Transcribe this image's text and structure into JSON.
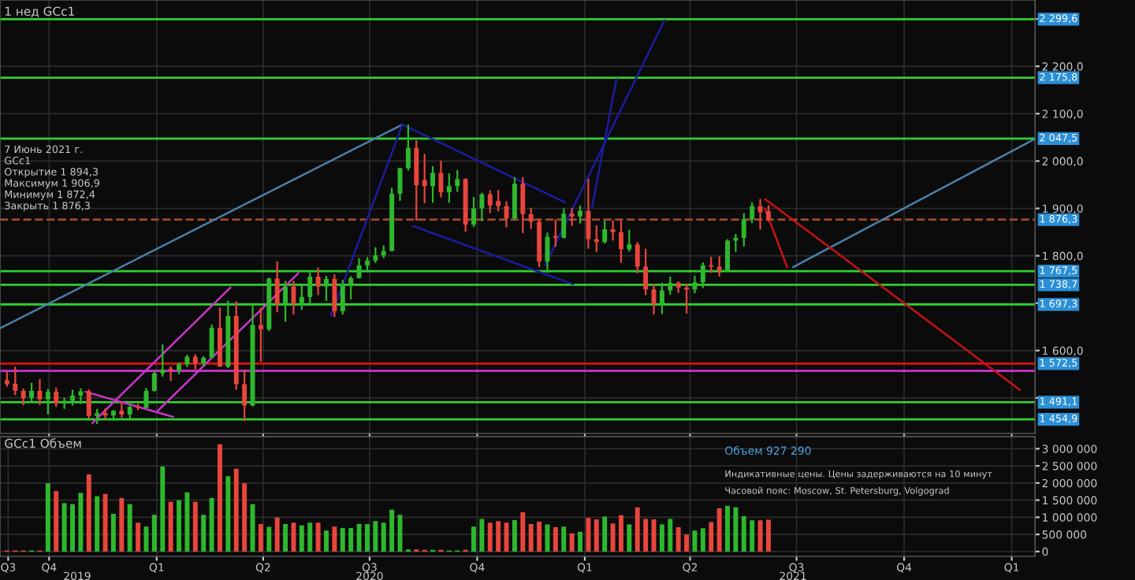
{
  "chart_data": [
    {
      "type": "candlestick",
      "title": "1 нед GCc1",
      "x": [
        "2019-08-26",
        "2019-09-02",
        "2019-09-09",
        "2019-09-16",
        "2019-09-23",
        "2019-09-30",
        "2019-10-07",
        "2019-10-14",
        "2019-10-21",
        "2019-10-28",
        "2019-11-04",
        "2019-11-11",
        "2019-11-18",
        "2019-11-25",
        "2019-12-02",
        "2019-12-09",
        "2019-12-16",
        "2019-12-23",
        "2019-12-30",
        "2020-01-06",
        "2020-01-13",
        "2020-01-20",
        "2020-01-27",
        "2020-02-03",
        "2020-02-10",
        "2020-02-17",
        "2020-02-24",
        "2020-03-02",
        "2020-03-09",
        "2020-03-16",
        "2020-03-23",
        "2020-03-30",
        "2020-04-06",
        "2020-04-13",
        "2020-04-20",
        "2020-04-27",
        "2020-05-04",
        "2020-05-11",
        "2020-05-18",
        "2020-05-25",
        "2020-06-01",
        "2020-06-08",
        "2020-06-15",
        "2020-06-22",
        "2020-06-29",
        "2020-07-06",
        "2020-07-13",
        "2020-07-20",
        "2020-07-27",
        "2020-08-03",
        "2020-08-10",
        "2020-08-17",
        "2020-08-24",
        "2020-08-31",
        "2020-09-07",
        "2020-09-14",
        "2020-09-21",
        "2020-09-28",
        "2020-10-05",
        "2020-10-12",
        "2020-10-19",
        "2020-10-26",
        "2020-11-02",
        "2020-11-09",
        "2020-11-16",
        "2020-11-23",
        "2020-11-30",
        "2020-12-07",
        "2020-12-14",
        "2020-12-21",
        "2020-12-28",
        "2021-01-04",
        "2021-01-11",
        "2021-01-18",
        "2021-01-25",
        "2021-02-01",
        "2021-02-08",
        "2021-02-15",
        "2021-02-22",
        "2021-03-01",
        "2021-03-08",
        "2021-03-15",
        "2021-03-22",
        "2021-03-29",
        "2021-04-05",
        "2021-04-12",
        "2021-04-19",
        "2021-04-26",
        "2021-05-03",
        "2021-05-10",
        "2021-05-17",
        "2021-05-24",
        "2021-05-31",
        "2021-06-07"
      ],
      "ohlc": [
        [
          1537,
          1556,
          1524,
          1529
        ],
        [
          1530,
          1566,
          1506,
          1515
        ],
        [
          1515,
          1520,
          1485,
          1499
        ],
        [
          1500,
          1532,
          1490,
          1515
        ],
        [
          1515,
          1540,
          1485,
          1497
        ],
        [
          1497,
          1519,
          1465,
          1513
        ],
        [
          1513,
          1522,
          1481,
          1488
        ],
        [
          1488,
          1500,
          1477,
          1494
        ],
        [
          1494,
          1517,
          1484,
          1505
        ],
        [
          1505,
          1520,
          1487,
          1514
        ],
        [
          1514,
          1518,
          1456,
          1462
        ],
        [
          1462,
          1477,
          1445,
          1468
        ],
        [
          1468,
          1478,
          1456,
          1463
        ],
        [
          1463,
          1474,
          1452,
          1473
        ],
        [
          1473,
          1490,
          1458,
          1465
        ],
        [
          1465,
          1486,
          1456,
          1481
        ],
        [
          1482,
          1487,
          1474,
          1479
        ],
        [
          1479,
          1521,
          1478,
          1515
        ],
        [
          1515,
          1555,
          1513,
          1552
        ],
        [
          1552,
          1613,
          1545,
          1560
        ],
        [
          1562,
          1567,
          1536,
          1558
        ],
        [
          1558,
          1575,
          1550,
          1571
        ],
        [
          1571,
          1591,
          1565,
          1587
        ],
        [
          1587,
          1592,
          1560,
          1573
        ],
        [
          1573,
          1588,
          1566,
          1585
        ],
        [
          1585,
          1655,
          1583,
          1648
        ],
        [
          1648,
          1691,
          1566,
          1566
        ],
        [
          1566,
          1705,
          1563,
          1673
        ],
        [
          1673,
          1704,
          1517,
          1529
        ],
        [
          1529,
          1560,
          1451,
          1484
        ],
        [
          1484,
          1695,
          1482,
          1654
        ],
        [
          1654,
          1690,
          1576,
          1645
        ],
        [
          1645,
          1754,
          1641,
          1752
        ],
        [
          1752,
          1788,
          1681,
          1698
        ],
        [
          1698,
          1747,
          1661,
          1735
        ],
        [
          1735,
          1747,
          1676,
          1700
        ],
        [
          1700,
          1738,
          1686,
          1713
        ],
        [
          1713,
          1765,
          1694,
          1756
        ],
        [
          1756,
          1775,
          1717,
          1735
        ],
        [
          1735,
          1758,
          1705,
          1751
        ],
        [
          1751,
          1761,
          1671,
          1683
        ],
        [
          1683,
          1749,
          1676,
          1737
        ],
        [
          1737,
          1757,
          1708,
          1753
        ],
        [
          1753,
          1795,
          1752,
          1780
        ],
        [
          1780,
          1797,
          1765,
          1790
        ],
        [
          1790,
          1818,
          1785,
          1801
        ],
        [
          1801,
          1822,
          1795,
          1810
        ],
        [
          1810,
          1944,
          1810,
          1931
        ],
        [
          1931,
          1985,
          1916,
          1985
        ],
        [
          1985,
          2077,
          1980,
          2028
        ],
        [
          2028,
          2044,
          1874,
          1949
        ],
        [
          1960,
          2015,
          1911,
          1947
        ],
        [
          1947,
          1989,
          1912,
          1975
        ],
        [
          1975,
          2001,
          1923,
          1934
        ],
        [
          1934,
          1974,
          1912,
          1947
        ],
        [
          1947,
          1981,
          1935,
          1962
        ],
        [
          1962,
          1964,
          1851,
          1866
        ],
        [
          1866,
          1924,
          1861,
          1900
        ],
        [
          1900,
          1933,
          1873,
          1930
        ],
        [
          1930,
          1938,
          1890,
          1906
        ],
        [
          1916,
          1939,
          1894,
          1905
        ],
        [
          1905,
          1915,
          1860,
          1879
        ],
        [
          1879,
          1966,
          1876,
          1952
        ],
        [
          1952,
          1966,
          1848,
          1888
        ],
        [
          1888,
          1901,
          1857,
          1872
        ],
        [
          1872,
          1878,
          1776,
          1788
        ],
        [
          1788,
          1849,
          1764,
          1840
        ],
        [
          1842,
          1877,
          1819,
          1838
        ],
        [
          1838,
          1900,
          1837,
          1889
        ],
        [
          1889,
          1901,
          1863,
          1883
        ],
        [
          1883,
          1906,
          1868,
          1895
        ],
        [
          1895,
          1962,
          1815,
          1835
        ],
        [
          1835,
          1864,
          1808,
          1829
        ],
        [
          1829,
          1874,
          1826,
          1856
        ],
        [
          1856,
          1875,
          1832,
          1850
        ],
        [
          1850,
          1875,
          1785,
          1814
        ],
        [
          1814,
          1855,
          1809,
          1824
        ],
        [
          1824,
          1829,
          1763,
          1777
        ],
        [
          1777,
          1815,
          1717,
          1729
        ],
        [
          1729,
          1740,
          1676,
          1698
        ],
        [
          1698,
          1743,
          1677,
          1727
        ],
        [
          1727,
          1756,
          1718,
          1743
        ],
        [
          1743,
          1746,
          1722,
          1733
        ],
        [
          1733,
          1741,
          1678,
          1729
        ],
        [
          1729,
          1758,
          1721,
          1744
        ],
        [
          1744,
          1786,
          1732,
          1780
        ],
        [
          1780,
          1798,
          1764,
          1777
        ],
        [
          1777,
          1799,
          1756,
          1768
        ],
        [
          1768,
          1835,
          1768,
          1832
        ],
        [
          1832,
          1846,
          1808,
          1838
        ],
        [
          1838,
          1890,
          1820,
          1877
        ],
        [
          1877,
          1913,
          1869,
          1905
        ],
        [
          1905,
          1920,
          1855,
          1892
        ],
        [
          1894.3,
          1906.9,
          1872.4,
          1876.3
        ]
      ],
      "colors": [
        "#e8453c",
        "#e8453c",
        "#e8453c",
        "#2db82d",
        "#e8453c",
        "#2db82d",
        "#e8453c",
        "#2db82d",
        "#2db82d",
        "#2db82d",
        "#e8453c",
        "#2db82d",
        "#e8453c",
        "#2db82d",
        "#e8453c",
        "#2db82d",
        "#e8453c",
        "#2db82d",
        "#2db82d",
        "#2db82d",
        "#e8453c",
        "#2db82d",
        "#2db82d",
        "#e8453c",
        "#2db82d",
        "#2db82d",
        "#e8453c",
        "#2db82d",
        "#e8453c",
        "#e8453c",
        "#2db82d",
        "#e8453c",
        "#2db82d",
        "#e8453c",
        "#2db82d",
        "#e8453c",
        "#2db82d",
        "#2db82d",
        "#e8453c",
        "#2db82d",
        "#e8453c",
        "#2db82d",
        "#2db82d",
        "#2db82d",
        "#2db82d",
        "#2db82d",
        "#2db82d",
        "#2db82d",
        "#2db82d",
        "#2db82d",
        "#e8453c",
        "#e8453c",
        "#2db82d",
        "#e8453c",
        "#2db82d",
        "#2db82d",
        "#e8453c",
        "#2db82d",
        "#2db82d",
        "#e8453c",
        "#e8453c",
        "#e8453c",
        "#2db82d",
        "#e8453c",
        "#e8453c",
        "#e8453c",
        "#2db82d",
        "#e8453c",
        "#2db82d",
        "#e8453c",
        "#2db82d",
        "#e8453c",
        "#e8453c",
        "#2db82d",
        "#e8453c",
        "#e8453c",
        "#2db82d",
        "#e8453c",
        "#e8453c",
        "#e8453c",
        "#2db82d",
        "#2db82d",
        "#e8453c",
        "#e8453c",
        "#2db82d",
        "#2db82d",
        "#e8453c",
        "#e8453c",
        "#2db82d",
        "#2db82d",
        "#2db82d",
        "#2db82d",
        "#e8453c",
        "#e8453c"
      ],
      "series": [
        {
          "type": "line",
          "color": "#4a7fa8",
          "x": [
            "2019-08-20",
            "2020-07-29"
          ],
          "values": [
            1647,
            2077
          ]
        },
        {
          "type": "line",
          "color": "#4a7fa8",
          "x": [
            "2021-06-28",
            "2022-01-21"
          ],
          "values": [
            1776,
            2047
          ]
        },
        {
          "type": "line",
          "color": "#1c1ca0",
          "x": [
            "2020-05-29",
            "2020-07-29"
          ],
          "values": [
            1673,
            2077
          ]
        },
        {
          "type": "line",
          "color": "#1c1ca0",
          "x": [
            "2020-07-29",
            "2020-12-15"
          ],
          "values": [
            2077,
            1913
          ]
        },
        {
          "type": "line",
          "color": "#1c1ca0",
          "x": [
            "2020-08-07",
            "2020-12-22"
          ],
          "values": [
            1863,
            1740
          ]
        },
        {
          "type": "line",
          "color": "#1c1ca0",
          "x": [
            "2020-11-28",
            "2021-03-10"
          ],
          "values": [
            1780,
            2297
          ]
        },
        {
          "type": "line",
          "color": "#1c1ca0",
          "x": [
            "2021-01-07",
            "2021-01-28"
          ],
          "values": [
            1900,
            2173
          ]
        },
        {
          "type": "line",
          "color": "#cc1111",
          "x": [
            "2021-06-04",
            "2022-01-08"
          ],
          "values": [
            1920,
            1517
          ]
        },
        {
          "type": "line",
          "color": "#cc1111",
          "x": [
            "2021-06-04",
            "2021-06-23"
          ],
          "values": [
            1900,
            1776
          ]
        },
        {
          "type": "line",
          "color": "#cc33cc",
          "x": [
            "2019-11-07",
            "2020-03-04"
          ],
          "values": [
            1447,
            1733
          ]
        },
        {
          "type": "line",
          "color": "#cc33cc",
          "x": [
            "2020-01-02",
            "2020-05-01"
          ],
          "values": [
            1473,
            1763
          ]
        },
        {
          "type": "line",
          "color": "#cc33cc",
          "x": [
            "2019-11-01",
            "2020-01-15"
          ],
          "values": [
            1513,
            1460
          ]
        }
      ],
      "ref_lines": [
        {
          "axis": "y",
          "value": 2299.6,
          "label": "2 299,6",
          "color": "#2fd02f"
        },
        {
          "axis": "y",
          "value": 2175.8,
          "label": "2 175,8",
          "color": "#2fd02f"
        },
        {
          "axis": "y",
          "value": 2047.5,
          "label": "2 047,5",
          "color": "#2fd02f"
        },
        {
          "axis": "y",
          "value": 1876.3,
          "label": "1 876,3",
          "color": "#9c4a2a",
          "line_style": "dashed"
        },
        {
          "axis": "y",
          "value": 1767.5,
          "label": "1 767,5",
          "color": "#2fd02f"
        },
        {
          "axis": "y",
          "value": 1738.7,
          "label": "1 738,7",
          "color": "#2fd02f"
        },
        {
          "axis": "y",
          "value": 1697.3,
          "label": "1 697,3",
          "color": "#2fd02f"
        },
        {
          "axis": "y",
          "value": 1572.5,
          "label": "1 572,5",
          "color": "#dd1111"
        },
        {
          "axis": "y",
          "value": 1557,
          "label": null,
          "color": "#cc33cc"
        },
        {
          "axis": "y",
          "value": 1491.1,
          "label": "1 491,1",
          "color": "#2fd02f"
        },
        {
          "axis": "y",
          "value": 1454.9,
          "label": "1 454,9",
          "color": "#2fd02f"
        }
      ],
      "annotations": [
        "7 Июнь 2021 г.",
        "GCc1",
        "Открытие 1 894,3",
        "Максимум 1 906,9",
        "Минимум 1 872,4",
        "Закрыть 1 876,3"
      ],
      "xlim": [
        "2019-08-20",
        "2022-01-21"
      ],
      "xticks": [
        {
          "value": "2019-10-01",
          "label": null
        },
        {
          "value": "2020-01-01",
          "label": null
        },
        {
          "value": "2020-04-01",
          "label": null
        },
        {
          "value": "2020-07-01",
          "label": null
        },
        {
          "value": "2020-10-01",
          "label": null
        },
        {
          "value": "2021-01-01",
          "label": null
        },
        {
          "value": "2021-04-01",
          "label": null
        },
        {
          "value": "2021-07-01",
          "label": null
        },
        {
          "value": "2021-10-01",
          "label": null
        },
        {
          "value": "2022-01-01",
          "label": null
        }
      ],
      "ylim": [
        1425,
        2340
      ],
      "yticks": [
        {
          "value": 2300,
          "label": null
        },
        {
          "value": 2200,
          "label": "2 200,0"
        },
        {
          "value": 2100,
          "label": "2 100,0"
        },
        {
          "value": 2000,
          "label": "2 000,0"
        },
        {
          "value": 1900,
          "label": "1 900,0"
        },
        {
          "value": 1800,
          "label": "1 800,0"
        },
        {
          "value": 1700,
          "label": null
        },
        {
          "value": 1600,
          "label": "1 600,0"
        },
        {
          "value": 1500,
          "label": null
        }
      ],
      "tick_labels": "y",
      "grid": true
    },
    {
      "type": "bar",
      "title": "GCc1 Объем",
      "x": [
        "2019-08-26",
        "2019-09-02",
        "2019-09-09",
        "2019-09-16",
        "2019-09-23",
        "2019-09-30",
        "2019-10-07",
        "2019-10-14",
        "2019-10-21",
        "2019-10-28",
        "2019-11-04",
        "2019-11-11",
        "2019-11-18",
        "2019-11-25",
        "2019-12-02",
        "2019-12-09",
        "2019-12-16",
        "2019-12-23",
        "2019-12-30",
        "2020-01-06",
        "2020-01-13",
        "2020-01-20",
        "2020-01-27",
        "2020-02-03",
        "2020-02-10",
        "2020-02-17",
        "2020-02-24",
        "2020-03-02",
        "2020-03-09",
        "2020-03-16",
        "2020-03-23",
        "2020-03-30",
        "2020-04-06",
        "2020-04-13",
        "2020-04-20",
        "2020-04-27",
        "2020-05-04",
        "2020-05-11",
        "2020-05-18",
        "2020-05-25",
        "2020-06-01",
        "2020-06-08",
        "2020-06-15",
        "2020-06-22",
        "2020-06-29",
        "2020-07-06",
        "2020-07-13",
        "2020-07-20",
        "2020-07-27",
        "2020-08-03",
        "2020-08-10",
        "2020-08-17",
        "2020-08-24",
        "2020-08-31",
        "2020-09-07",
        "2020-09-14",
        "2020-09-21",
        "2020-09-28",
        "2020-10-05",
        "2020-10-12",
        "2020-10-19",
        "2020-10-26",
        "2020-11-02",
        "2020-11-09",
        "2020-11-16",
        "2020-11-23",
        "2020-11-30",
        "2020-12-07",
        "2020-12-14",
        "2020-12-21",
        "2020-12-28",
        "2021-01-04",
        "2021-01-11",
        "2021-01-18",
        "2021-01-25",
        "2021-02-01",
        "2021-02-08",
        "2021-02-15",
        "2021-02-22",
        "2021-03-01",
        "2021-03-08",
        "2021-03-15",
        "2021-03-22",
        "2021-03-29",
        "2021-04-05",
        "2021-04-12",
        "2021-04-19",
        "2021-04-26",
        "2021-05-03",
        "2021-05-10",
        "2021-05-17",
        "2021-05-24",
        "2021-05-31",
        "2021-06-07"
      ],
      "values": [
        30000,
        30000,
        30000,
        30000,
        30000,
        1990000,
        1760000,
        1410000,
        1380000,
        1710000,
        2250000,
        1610000,
        1680000,
        1100000,
        1560000,
        1380000,
        840000,
        730000,
        1070000,
        2480000,
        1450000,
        1500000,
        1730000,
        1450000,
        1070000,
        1560000,
        3130000,
        2200000,
        2420000,
        1990000,
        1380000,
        800000,
        720000,
        990000,
        800000,
        840000,
        760000,
        840000,
        840000,
        610000,
        730000,
        690000,
        690000,
        810000,
        800000,
        890000,
        840000,
        1220000,
        1070000,
        60000,
        60000,
        50000,
        50000,
        50000,
        30000,
        30000,
        50000,
        730000,
        950000,
        840000,
        890000,
        840000,
        920000,
        1150000,
        800000,
        870000,
        790000,
        710000,
        730000,
        530000,
        580000,
        980000,
        940000,
        1020000,
        820000,
        1060000,
        790000,
        1290000,
        950000,
        940000,
        790000,
        950000,
        710000,
        500000,
        610000,
        680000,
        860000,
        1260000,
        1330000,
        1290000,
        1030000,
        910000,
        910000,
        930000
      ],
      "colors": [
        "#e8453c",
        "#e8453c",
        "#e8453c",
        "#2db82d",
        "#e8453c",
        "#2db82d",
        "#e8453c",
        "#2db82d",
        "#2db82d",
        "#2db82d",
        "#e8453c",
        "#2db82d",
        "#e8453c",
        "#2db82d",
        "#e8453c",
        "#2db82d",
        "#e8453c",
        "#2db82d",
        "#2db82d",
        "#2db82d",
        "#e8453c",
        "#2db82d",
        "#2db82d",
        "#e8453c",
        "#2db82d",
        "#2db82d",
        "#e8453c",
        "#2db82d",
        "#e8453c",
        "#e8453c",
        "#2db82d",
        "#e8453c",
        "#2db82d",
        "#e8453c",
        "#2db82d",
        "#e8453c",
        "#2db82d",
        "#2db82d",
        "#e8453c",
        "#2db82d",
        "#e8453c",
        "#2db82d",
        "#2db82d",
        "#2db82d",
        "#2db82d",
        "#2db82d",
        "#2db82d",
        "#2db82d",
        "#2db82d",
        "#2db82d",
        "#e8453c",
        "#e8453c",
        "#2db82d",
        "#e8453c",
        "#2db82d",
        "#2db82d",
        "#e8453c",
        "#2db82d",
        "#2db82d",
        "#e8453c",
        "#e8453c",
        "#e8453c",
        "#2db82d",
        "#e8453c",
        "#e8453c",
        "#e8453c",
        "#2db82d",
        "#e8453c",
        "#2db82d",
        "#e8453c",
        "#2db82d",
        "#e8453c",
        "#e8453c",
        "#2db82d",
        "#e8453c",
        "#e8453c",
        "#2db82d",
        "#e8453c",
        "#e8453c",
        "#e8453c",
        "#2db82d",
        "#2db82d",
        "#e8453c",
        "#e8453c",
        "#2db82d",
        "#2db82d",
        "#e8453c",
        "#e8453c",
        "#2db82d",
        "#2db82d",
        "#2db82d",
        "#2db82d",
        "#e8453c",
        "#e8453c"
      ],
      "annotations": [
        "Объем 927 290",
        "Индикативные цены. Цены задерживаются на 10 минут",
        "Часовой пояс: Moscow, St. Petersburg, Volgograd"
      ],
      "xlim": [
        "2019-08-20",
        "2022-01-21"
      ],
      "xticks": [
        {
          "value": "2019-08-27",
          "label": "Q3"
        },
        {
          "value": "2019-10-01",
          "label": "Q4"
        },
        {
          "value": "2020-01-01",
          "label": "Q1"
        },
        {
          "value": "2020-04-01",
          "label": "Q2"
        },
        {
          "value": "2020-07-01",
          "label": "Q3"
        },
        {
          "value": "2020-10-01",
          "label": "Q4"
        },
        {
          "value": "2021-01-01",
          "label": "Q1"
        },
        {
          "value": "2021-04-01",
          "label": "Q2"
        },
        {
          "value": "2021-07-01",
          "label": "Q3"
        },
        {
          "value": "2021-10-01",
          "label": "Q4"
        },
        {
          "value": "2022-01-01",
          "label": "Q1"
        }
      ],
      "x2lim": [
        "2019-08-20",
        "2022-01-21"
      ],
      "x2ticks": [
        {
          "value": "2019-10-25",
          "label": "2019"
        },
        {
          "value": "2020-07-01",
          "label": "2020"
        },
        {
          "value": "2021-06-28",
          "label": "2021"
        }
      ],
      "ylim": [
        -140000,
        3350000
      ],
      "yticks": [
        {
          "value": 0,
          "label": "0"
        },
        {
          "value": 500000,
          "label": "500 000"
        },
        {
          "value": 1000000,
          "label": "1 000 000"
        },
        {
          "value": 1500000,
          "label": "1 500 000"
        },
        {
          "value": 2000000,
          "label": "2 000 000"
        },
        {
          "value": 2500000,
          "label": "2 500 000"
        },
        {
          "value": 3000000,
          "label": "3 000 000"
        }
      ],
      "grid": true
    }
  ]
}
